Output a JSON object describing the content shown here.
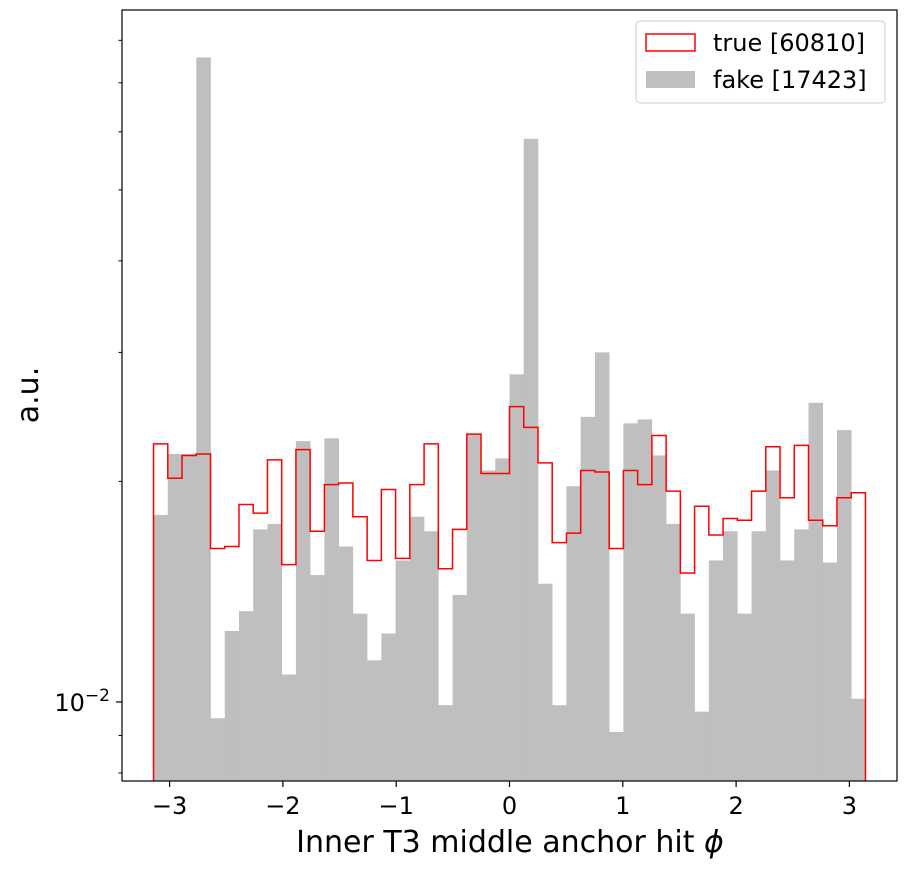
{
  "chart_data": {
    "type": "histogram",
    "xlabel": "Inner T3 middle anchor hit ",
    "xlabel_symbol": "ϕ",
    "ylabel": "a.u.",
    "yscale": "log",
    "xlim": [
      -3.42,
      3.42
    ],
    "ylim": [
      0.0078,
      0.088
    ],
    "x_ticks": [
      -3,
      -2,
      -1,
      0,
      1,
      2,
      3
    ],
    "x_tick_labels": [
      "−3",
      "−2",
      "−1",
      "0",
      "1",
      "2",
      "3"
    ],
    "y_major_tick": 0.01,
    "y_major_tick_label": "10",
    "y_major_tick_exp": "−2",
    "bins": {
      "start": -3.1416,
      "end": 3.1416,
      "count": 50
    },
    "legend_position": "top-right",
    "series": [
      {
        "name": "true [60810]",
        "style": "step",
        "color": "#ff0000",
        "values": [
          0.0225,
          0.0202,
          0.0217,
          0.0218,
          0.0162,
          0.0163,
          0.0186,
          0.0181,
          0.0214,
          0.0154,
          0.0221,
          0.0171,
          0.0198,
          0.0199,
          0.0179,
          0.0156,
          0.0195,
          0.0157,
          0.0198,
          0.0225,
          0.0152,
          0.0172,
          0.0232,
          0.0205,
          0.0205,
          0.0253,
          0.0237,
          0.0212,
          0.0165,
          0.017,
          0.0207,
          0.0206,
          0.0162,
          0.0207,
          0.0198,
          0.0231,
          0.0194,
          0.015,
          0.0185,
          0.0169,
          0.0178,
          0.0177,
          0.0194,
          0.0223,
          0.019,
          0.0224,
          0.0177,
          0.0174,
          0.019,
          0.0193
        ]
      },
      {
        "name": "fake [17423]",
        "style": "filled",
        "color": "#bfbfbf",
        "values": [
          0.018,
          0.0218,
          0.0218,
          0.0758,
          0.0095,
          0.0125,
          0.0133,
          0.0172,
          0.0175,
          0.0109,
          0.0227,
          0.0149,
          0.0229,
          0.0163,
          0.0132,
          0.0114,
          0.0124,
          0.0156,
          0.0179,
          0.0171,
          0.0099,
          0.014,
          0.0232,
          0.0207,
          0.0215,
          0.028,
          0.0587,
          0.0145,
          0.0099,
          0.0197,
          0.0245,
          0.03,
          0.0091,
          0.024,
          0.0243,
          0.0217,
          0.0175,
          0.0132,
          0.0097,
          0.0156,
          0.0171,
          0.0132,
          0.0171,
          0.0207,
          0.0156,
          0.0172,
          0.0256,
          0.0155,
          0.0235,
          0.0101
        ]
      }
    ]
  }
}
